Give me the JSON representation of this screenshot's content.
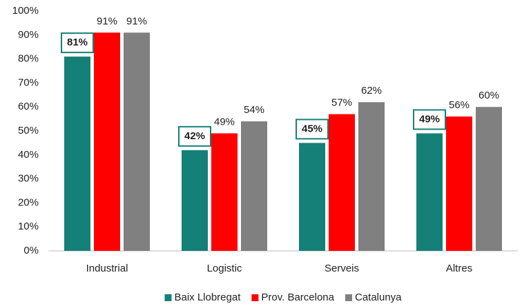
{
  "chart_data": {
    "type": "bar",
    "categories": [
      "Industrial",
      "Logistic",
      "Serveis",
      "Altres"
    ],
    "series": [
      {
        "name": "Baix Llobregat",
        "color": "#148078",
        "values": [
          81,
          42,
          45,
          49
        ],
        "value_labels": [
          "81%",
          "42%",
          "45%",
          "49%"
        ]
      },
      {
        "name": "Prov. Barcelona",
        "color": "#ff0000",
        "values": [
          91,
          49,
          57,
          56
        ],
        "value_labels": [
          "91%",
          "49%",
          "57%",
          "56%"
        ]
      },
      {
        "name": "Catalunya",
        "color": "#808080",
        "values": [
          91,
          54,
          62,
          60
        ],
        "value_labels": [
          "91%",
          "54%",
          "62%",
          "60%"
        ]
      }
    ],
    "ylim": [
      0,
      100
    ],
    "yticks": [
      {
        "value": 0,
        "label": "0%"
      },
      {
        "value": 10,
        "label": "10%"
      },
      {
        "value": 20,
        "label": "20%"
      },
      {
        "value": 30,
        "label": "30%"
      },
      {
        "value": 40,
        "label": "40%"
      },
      {
        "value": 50,
        "label": "50%"
      },
      {
        "value": 60,
        "label": "60%"
      },
      {
        "value": 70,
        "label": "70%"
      },
      {
        "value": 80,
        "label": "80%"
      },
      {
        "value": 90,
        "label": "90%"
      },
      {
        "value": 100,
        "label": "100%"
      }
    ],
    "grid": false,
    "legend": "bottom"
  }
}
